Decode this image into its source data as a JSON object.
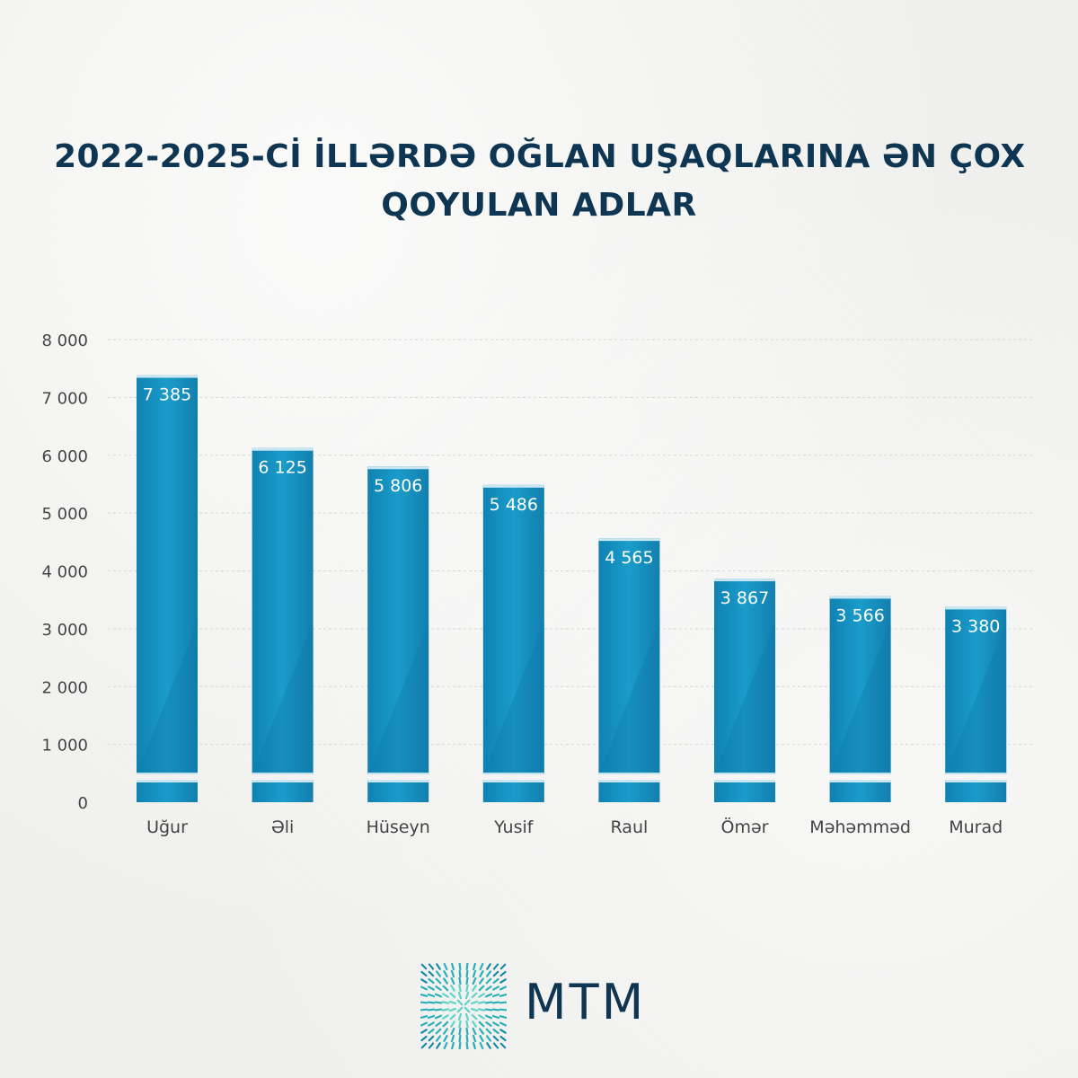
{
  "title_lines": [
    "2022-2025-Cİ İLLƏRDƏ OĞLAN UŞAQLARINA ƏN ÇOX",
    "QOYULAN ADLAR"
  ],
  "logo": {
    "text": "MTM",
    "icon": "mtm-logo-mark"
  },
  "colors": {
    "bar": "#1a96c4",
    "bar_dark": "#0f79a8",
    "title": "#0e3552",
    "axis_text": "#444444",
    "bar_label": "#ffffff"
  },
  "chart_data": {
    "type": "bar",
    "title": "2022-2025-Cİ İLLƏRDƏ OĞLAN UŞAQLARINA ƏN ÇOX QOYULAN ADLAR",
    "categories": [
      "Uğur",
      "Əli",
      "Hüseyn",
      "Yusif",
      "Raul",
      "Ömər",
      "Məhəmməd",
      "Murad"
    ],
    "values": [
      7385,
      6125,
      5806,
      5486,
      4565,
      3867,
      3566,
      3380
    ],
    "value_labels": [
      "7 385",
      "6 125",
      "5 806",
      "5 486",
      "4 565",
      "3 867",
      "3 566",
      "3 380"
    ],
    "yticks": [
      0,
      1000,
      2000,
      3000,
      4000,
      5000,
      6000,
      7000,
      8000
    ],
    "ytick_labels": [
      "0",
      "1 000",
      "2 000",
      "3 000",
      "4 000",
      "5 000",
      "6 000",
      "7 000",
      "8 000"
    ],
    "ylim": [
      0,
      8000
    ],
    "xlabel": "",
    "ylabel": "",
    "grid": true,
    "legend": "none"
  }
}
